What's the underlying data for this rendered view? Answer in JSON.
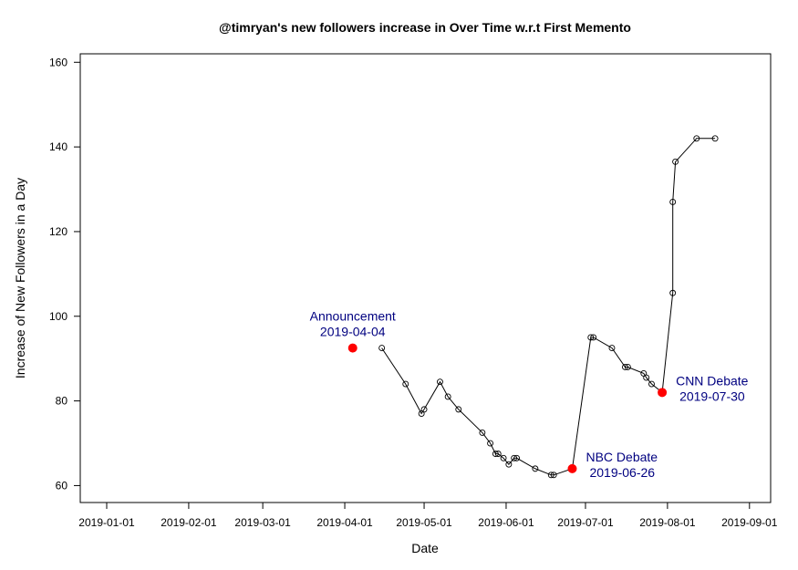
{
  "chart_data": {
    "type": "line",
    "title": "@timryan's new followers increase in Over Time w.r.t First Memento",
    "xlabel": "Date",
    "ylabel": "Increase of New Followers in a Day",
    "x_ticks": [
      "2019-01-01",
      "2019-02-01",
      "2019-03-01",
      "2019-04-01",
      "2019-05-01",
      "2019-06-01",
      "2019-07-01",
      "2019-08-01",
      "2019-09-01"
    ],
    "y_ticks": [
      60,
      80,
      100,
      120,
      140,
      160
    ],
    "ylim": [
      56,
      162
    ],
    "xlim": [
      "2018-12-22",
      "2019-09-09"
    ],
    "grid": false,
    "series": [
      {
        "points": [
          {
            "x": "2019-04-15",
            "y": 92.5
          },
          {
            "x": "2019-04-24",
            "y": 84
          },
          {
            "x": "2019-04-30",
            "y": 77
          },
          {
            "x": "2019-05-01",
            "y": 78
          },
          {
            "x": "2019-05-07",
            "y": 84.5
          },
          {
            "x": "2019-05-10",
            "y": 81
          },
          {
            "x": "2019-05-14",
            "y": 78
          },
          {
            "x": "2019-05-23",
            "y": 72.5
          },
          {
            "x": "2019-05-26",
            "y": 70
          },
          {
            "x": "2019-05-28",
            "y": 67.5
          },
          {
            "x": "2019-05-29",
            "y": 67.5
          },
          {
            "x": "2019-05-31",
            "y": 66.5
          },
          {
            "x": "2019-06-02",
            "y": 65
          },
          {
            "x": "2019-06-04",
            "y": 66.5
          },
          {
            "x": "2019-06-05",
            "y": 66.5
          },
          {
            "x": "2019-06-12",
            "y": 64
          },
          {
            "x": "2019-06-18",
            "y": 62.5
          },
          {
            "x": "2019-06-19",
            "y": 62.5
          },
          {
            "x": "2019-06-26",
            "y": 64
          },
          {
            "x": "2019-07-03",
            "y": 95
          },
          {
            "x": "2019-07-04",
            "y": 95
          },
          {
            "x": "2019-07-11",
            "y": 92.5
          },
          {
            "x": "2019-07-16",
            "y": 88
          },
          {
            "x": "2019-07-17",
            "y": 88
          },
          {
            "x": "2019-07-23",
            "y": 86.5
          },
          {
            "x": "2019-07-24",
            "y": 85.5
          },
          {
            "x": "2019-07-26",
            "y": 84
          },
          {
            "x": "2019-07-30",
            "y": 82
          },
          {
            "x": "2019-08-03",
            "y": 105.5
          },
          {
            "x": "2019-08-03",
            "y": 127
          },
          {
            "x": "2019-08-04",
            "y": 136.5
          },
          {
            "x": "2019-08-12",
            "y": 142
          },
          {
            "x": "2019-08-19",
            "y": 142
          }
        ]
      }
    ],
    "events": [
      {
        "x": "2019-04-04",
        "y": 92.5,
        "label": "Announcement",
        "date_label": "2019-04-04",
        "color": "#ff0000"
      },
      {
        "x": "2019-06-26",
        "y": 64,
        "label": "NBC Debate",
        "date_label": "2019-06-26",
        "color": "#ff0000"
      },
      {
        "x": "2019-07-30",
        "y": 82,
        "label": "CNN Debate",
        "date_label": "2019-07-30",
        "color": "#ff0000"
      }
    ],
    "annotation_color": "#000080"
  }
}
